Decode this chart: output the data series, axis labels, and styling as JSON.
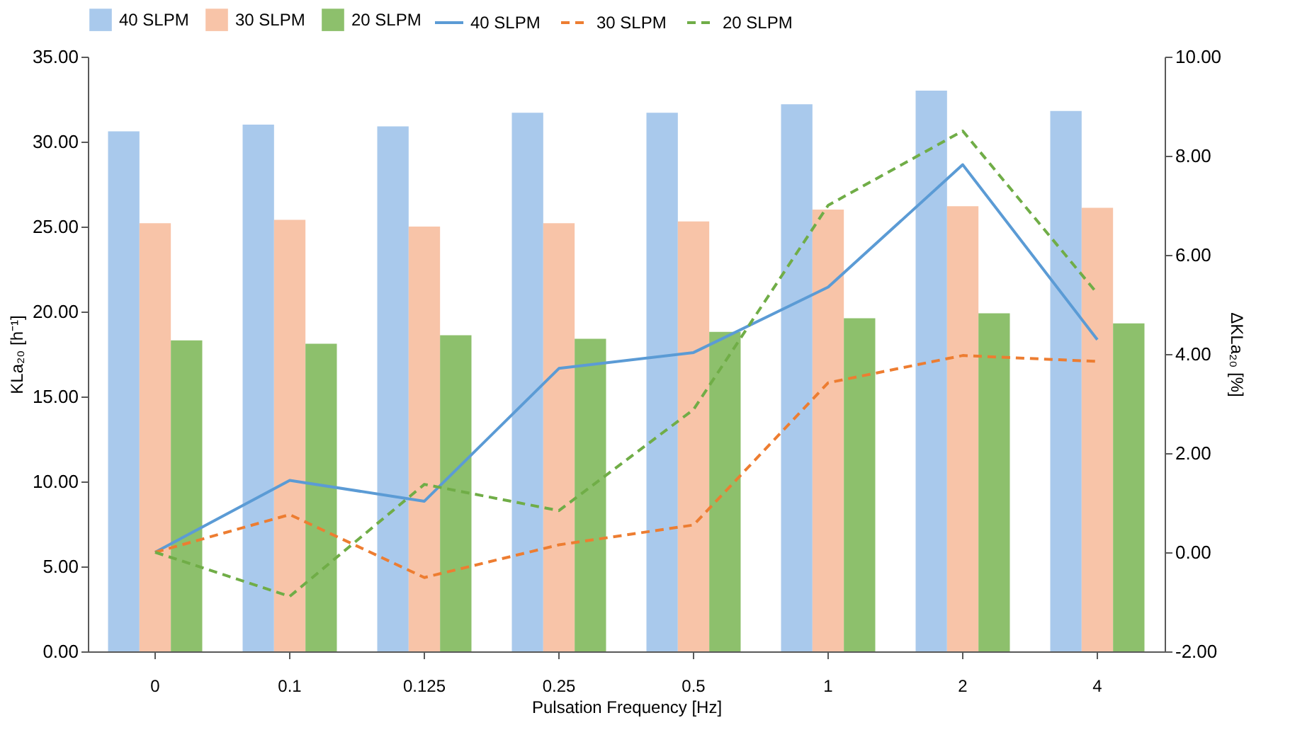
{
  "chart_data": {
    "type": "bar",
    "xlabel": "Pulsation Frequency [Hz]",
    "ylabel": "KLa₂₀ [h⁻¹]",
    "y2label": "ΔKLa₂₀ [%]",
    "categories": [
      "0",
      "0.1",
      "0.125",
      "0.25",
      "0.5",
      "1",
      "2",
      "4"
    ],
    "series": [
      {
        "name": "40 SLPM",
        "color": "#a9c9ec",
        "values": [
          30.6,
          31.0,
          30.9,
          31.7,
          31.7,
          32.2,
          33.0,
          31.8
        ]
      },
      {
        "name": "30 SLPM",
        "color": "#f8c4a8",
        "values": [
          25.2,
          25.4,
          25.0,
          25.2,
          25.3,
          26.0,
          26.2,
          26.1
        ]
      },
      {
        "name": "20 SLPM",
        "color": "#8dc06c",
        "values": [
          18.3,
          18.1,
          18.6,
          18.4,
          18.8,
          19.6,
          19.9,
          19.3
        ]
      },
      {
        "name": "40 SLPM",
        "type": "line",
        "axis": "y2",
        "color": "#5b9bd5",
        "line_style": "solid",
        "values": [
          0.0,
          1.45,
          1.03,
          3.71,
          4.03,
          5.35,
          7.82,
          4.29
        ]
      },
      {
        "name": "30 SLPM",
        "type": "line",
        "axis": "y2",
        "color": "#ed7d31",
        "line_style": "dashed",
        "values": [
          0.0,
          0.76,
          -0.51,
          0.15,
          0.55,
          3.42,
          3.97,
          3.85
        ]
      },
      {
        "name": "20 SLPM",
        "type": "line",
        "axis": "y2",
        "color": "#70ad47",
        "line_style": "dashed",
        "values": [
          0.0,
          -0.89,
          1.37,
          0.84,
          2.88,
          7.0,
          8.5,
          5.22
        ]
      }
    ],
    "ylim": [
      0,
      35
    ],
    "yticks": [
      {
        "value": 0,
        "label": "0.00"
      },
      {
        "value": 5,
        "label": "5.00"
      },
      {
        "value": 10,
        "label": "10.00"
      },
      {
        "value": 15,
        "label": "15.00"
      },
      {
        "value": 20,
        "label": "20.00"
      },
      {
        "value": 25,
        "label": "25.00"
      },
      {
        "value": 30,
        "label": "30.00"
      },
      {
        "value": 35,
        "label": "35.00"
      }
    ],
    "y2lim": [
      -2,
      10
    ],
    "y2ticks": [
      {
        "value": -2,
        "label": "-2.00"
      },
      {
        "value": 0,
        "label": "0.00"
      },
      {
        "value": 2,
        "label": "2.00"
      },
      {
        "value": 4,
        "label": "4.00"
      },
      {
        "value": 6,
        "label": "6.00"
      },
      {
        "value": 8,
        "label": "8.00"
      },
      {
        "value": 10,
        "label": "10.00"
      }
    ],
    "grid": false,
    "legend": "top"
  }
}
